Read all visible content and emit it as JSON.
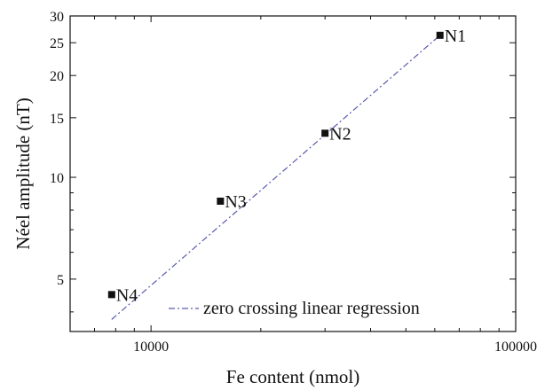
{
  "chart_data": {
    "type": "scatter",
    "xlabel": "Fe content (nmol)",
    "ylabel": "Néel amplitude (nT)",
    "x_scale": "log",
    "y_scale": "log",
    "xlim": [
      6000,
      100000
    ],
    "ylim": [
      3.5,
      30
    ],
    "x_ticks": [
      10000,
      100000
    ],
    "x_tick_labels": [
      "10000",
      "100000"
    ],
    "y_ticks": [
      5,
      10,
      15,
      20,
      25,
      30
    ],
    "y_tick_labels": [
      "5",
      "10",
      "15",
      "20",
      "25",
      "30"
    ],
    "points": [
      {
        "label": "N1",
        "x": 62000,
        "y": 26.3
      },
      {
        "label": "N2",
        "x": 30000,
        "y": 13.5
      },
      {
        "label": "N3",
        "x": 15500,
        "y": 8.5
      },
      {
        "label": "N4",
        "x": 7800,
        "y": 4.5
      }
    ],
    "regression": {
      "name": "zero crossing linear regression",
      "x": [
        7800,
        62000
      ],
      "y": [
        3.8,
        26.3
      ],
      "color": "#5a5ab0",
      "dash": "dash-dot"
    },
    "legend": {
      "entries": [
        "zero crossing linear regression"
      ],
      "placement": "bottom-right"
    },
    "grid": false
  }
}
